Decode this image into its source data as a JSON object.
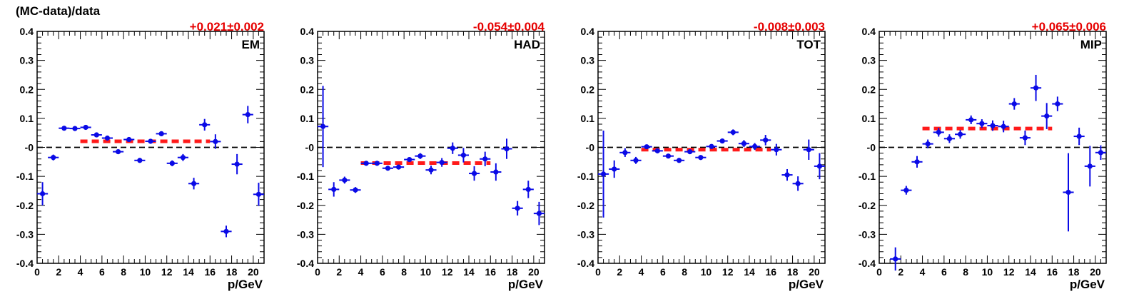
{
  "figure": {
    "ylabel": "(MC-data)/data"
  },
  "chart_data": [
    {
      "type": "scatter",
      "label": "EM",
      "fit_label": "+0.021±0.002",
      "fit": {
        "value": 0.021,
        "x_range": [
          4,
          16
        ]
      },
      "xlabel": "p/GeV",
      "xlim": [
        0,
        21
      ],
      "ylim": [
        -0.4,
        0.4
      ],
      "x_ticks": [
        0,
        2,
        4,
        6,
        8,
        10,
        12,
        14,
        16,
        18,
        20
      ],
      "y_ticks": [
        0.4,
        0.3,
        0.2,
        0.1,
        -0.0,
        -0.1,
        -0.2,
        -0.3,
        -0.4
      ],
      "y_tick_labels": [
        "0.4",
        "0.3",
        "0.2",
        "0.1",
        "-0",
        "-0.1",
        "-0.2",
        "-0.3",
        "-0.4"
      ],
      "reference_line": 0,
      "points": [
        {
          "x": 0.5,
          "y": -0.16,
          "err": 0.04
        },
        {
          "x": 1.5,
          "y": -0.035,
          "err": 0.01
        },
        {
          "x": 2.5,
          "y": 0.066,
          "err": 0.004
        },
        {
          "x": 3.5,
          "y": 0.065,
          "err": 0.004
        },
        {
          "x": 4.5,
          "y": 0.069,
          "err": 0.004
        },
        {
          "x": 5.5,
          "y": 0.043,
          "err": 0.005
        },
        {
          "x": 6.5,
          "y": 0.032,
          "err": 0.005
        },
        {
          "x": 7.5,
          "y": -0.015,
          "err": 0.006
        },
        {
          "x": 8.5,
          "y": 0.027,
          "err": 0.006
        },
        {
          "x": 9.5,
          "y": -0.045,
          "err": 0.006
        },
        {
          "x": 10.5,
          "y": 0.021,
          "err": 0.008
        },
        {
          "x": 11.5,
          "y": 0.047,
          "err": 0.008
        },
        {
          "x": 12.5,
          "y": -0.055,
          "err": 0.01
        },
        {
          "x": 13.5,
          "y": -0.035,
          "err": 0.012
        },
        {
          "x": 14.5,
          "y": -0.125,
          "err": 0.02
        },
        {
          "x": 15.5,
          "y": 0.078,
          "err": 0.02
        },
        {
          "x": 16.5,
          "y": 0.02,
          "err": 0.025
        },
        {
          "x": 17.5,
          "y": -0.29,
          "err": 0.02
        },
        {
          "x": 18.5,
          "y": -0.058,
          "err": 0.035
        },
        {
          "x": 19.5,
          "y": 0.113,
          "err": 0.03
        },
        {
          "x": 20.5,
          "y": -0.162,
          "err": 0.04
        }
      ],
      "colors": {
        "points": "#0a0ae6",
        "fit": "#ff1a1a",
        "fit_label": "#e60000"
      }
    },
    {
      "type": "scatter",
      "label": "HAD",
      "fit_label": "-0.054±0.004",
      "fit": {
        "value": -0.054,
        "x_range": [
          4,
          16
        ]
      },
      "xlabel": "p/GeV",
      "xlim": [
        0,
        21
      ],
      "ylim": [
        -0.4,
        0.4
      ],
      "x_ticks": [
        0,
        2,
        4,
        6,
        8,
        10,
        12,
        14,
        16,
        18,
        20
      ],
      "y_ticks": [
        0.4,
        0.3,
        0.2,
        0.1,
        -0.0,
        -0.1,
        -0.2,
        -0.3,
        -0.4
      ],
      "y_tick_labels": [
        "0.4",
        "0.3",
        "0.2",
        "0.1",
        "-0",
        "-0.1",
        "-0.2",
        "-0.3",
        "-0.4"
      ],
      "reference_line": 0,
      "points": [
        {
          "x": 0.5,
          "y": 0.072,
          "err": 0.14
        },
        {
          "x": 1.5,
          "y": -0.145,
          "err": 0.025
        },
        {
          "x": 2.5,
          "y": -0.113,
          "err": 0.012
        },
        {
          "x": 3.5,
          "y": -0.147,
          "err": 0.01
        },
        {
          "x": 4.5,
          "y": -0.055,
          "err": 0.006
        },
        {
          "x": 5.5,
          "y": -0.055,
          "err": 0.006
        },
        {
          "x": 6.5,
          "y": -0.072,
          "err": 0.006
        },
        {
          "x": 7.5,
          "y": -0.068,
          "err": 0.006
        },
        {
          "x": 8.5,
          "y": -0.042,
          "err": 0.008
        },
        {
          "x": 9.5,
          "y": -0.03,
          "err": 0.01
        },
        {
          "x": 10.5,
          "y": -0.078,
          "err": 0.015
        },
        {
          "x": 11.5,
          "y": -0.052,
          "err": 0.015
        },
        {
          "x": 12.5,
          "y": -0.003,
          "err": 0.02
        },
        {
          "x": 13.5,
          "y": -0.027,
          "err": 0.025
        },
        {
          "x": 14.5,
          "y": -0.09,
          "err": 0.025
        },
        {
          "x": 15.5,
          "y": -0.04,
          "err": 0.025
        },
        {
          "x": 16.5,
          "y": -0.085,
          "err": 0.03
        },
        {
          "x": 17.5,
          "y": -0.005,
          "err": 0.035
        },
        {
          "x": 18.5,
          "y": -0.21,
          "err": 0.025
        },
        {
          "x": 19.5,
          "y": -0.145,
          "err": 0.03
        },
        {
          "x": 20.5,
          "y": -0.228,
          "err": 0.04
        }
      ],
      "colors": {
        "points": "#0a0ae6",
        "fit": "#ff1a1a",
        "fit_label": "#e60000"
      }
    },
    {
      "type": "scatter",
      "label": "TOT",
      "fit_label": "-0.008±0.003",
      "fit": {
        "value": -0.008,
        "x_range": [
          4,
          16
        ]
      },
      "xlabel": "p/GeV",
      "xlim": [
        0,
        21
      ],
      "ylim": [
        -0.4,
        0.4
      ],
      "x_ticks": [
        0,
        2,
        4,
        6,
        8,
        10,
        12,
        14,
        16,
        18,
        20
      ],
      "y_ticks": [
        0.4,
        0.3,
        0.2,
        0.1,
        -0.0,
        -0.1,
        -0.2,
        -0.3,
        -0.4
      ],
      "y_tick_labels": [
        "0.4",
        "0.3",
        "0.2",
        "0.1",
        "-0",
        "-0.1",
        "-0.2",
        "-0.3",
        "-0.4"
      ],
      "reference_line": 0,
      "points": [
        {
          "x": 0.5,
          "y": -0.092,
          "err": 0.15
        },
        {
          "x": 1.5,
          "y": -0.075,
          "err": 0.03
        },
        {
          "x": 2.5,
          "y": -0.018,
          "err": 0.015
        },
        {
          "x": 3.5,
          "y": -0.045,
          "err": 0.012
        },
        {
          "x": 4.5,
          "y": 0.002,
          "err": 0.005
        },
        {
          "x": 5.5,
          "y": -0.012,
          "err": 0.005
        },
        {
          "x": 6.5,
          "y": -0.03,
          "err": 0.005
        },
        {
          "x": 7.5,
          "y": -0.045,
          "err": 0.005
        },
        {
          "x": 8.5,
          "y": -0.015,
          "err": 0.006
        },
        {
          "x": 9.5,
          "y": -0.035,
          "err": 0.008
        },
        {
          "x": 10.5,
          "y": 0.003,
          "err": 0.008
        },
        {
          "x": 11.5,
          "y": 0.022,
          "err": 0.008
        },
        {
          "x": 12.5,
          "y": 0.052,
          "err": 0.01
        },
        {
          "x": 13.5,
          "y": 0.013,
          "err": 0.012
        },
        {
          "x": 14.5,
          "y": 0.003,
          "err": 0.012
        },
        {
          "x": 15.5,
          "y": 0.025,
          "err": 0.018
        },
        {
          "x": 16.5,
          "y": -0.008,
          "err": 0.02
        },
        {
          "x": 17.5,
          "y": -0.095,
          "err": 0.02
        },
        {
          "x": 18.5,
          "y": -0.125,
          "err": 0.025
        },
        {
          "x": 19.5,
          "y": -0.008,
          "err": 0.035
        },
        {
          "x": 20.5,
          "y": -0.065,
          "err": 0.045
        }
      ],
      "colors": {
        "points": "#0a0ae6",
        "fit": "#ff1a1a",
        "fit_label": "#e60000"
      }
    },
    {
      "type": "scatter",
      "label": "MIP",
      "fit_label": "+0.065±0.006",
      "fit": {
        "value": 0.065,
        "x_range": [
          4,
          16
        ]
      },
      "xlabel": "p/GeV",
      "xlim": [
        0,
        21
      ],
      "ylim": [
        -0.4,
        0.4
      ],
      "x_ticks": [
        0,
        2,
        4,
        6,
        8,
        10,
        12,
        14,
        16,
        18,
        20
      ],
      "y_ticks": [
        0.4,
        0.3,
        0.2,
        0.1,
        -0.0,
        -0.1,
        -0.2,
        -0.3,
        -0.4
      ],
      "y_tick_labels": [
        "0.4",
        "0.3",
        "0.2",
        "0.1",
        "-0",
        "-0.1",
        "-0.2",
        "-0.3",
        "-0.4"
      ],
      "reference_line": 0,
      "points": [
        {
          "x": 1.5,
          "y": -0.385,
          "err": 0.04
        },
        {
          "x": 2.5,
          "y": -0.148,
          "err": 0.015
        },
        {
          "x": 3.5,
          "y": -0.05,
          "err": 0.02
        },
        {
          "x": 4.5,
          "y": 0.012,
          "err": 0.015
        },
        {
          "x": 5.5,
          "y": 0.052,
          "err": 0.015
        },
        {
          "x": 6.5,
          "y": 0.03,
          "err": 0.015
        },
        {
          "x": 7.5,
          "y": 0.045,
          "err": 0.015
        },
        {
          "x": 8.5,
          "y": 0.095,
          "err": 0.015
        },
        {
          "x": 9.5,
          "y": 0.082,
          "err": 0.015
        },
        {
          "x": 10.5,
          "y": 0.075,
          "err": 0.018
        },
        {
          "x": 11.5,
          "y": 0.072,
          "err": 0.02
        },
        {
          "x": 12.5,
          "y": 0.15,
          "err": 0.02
        },
        {
          "x": 13.5,
          "y": 0.033,
          "err": 0.025
        },
        {
          "x": 14.5,
          "y": 0.205,
          "err": 0.045
        },
        {
          "x": 15.5,
          "y": 0.108,
          "err": 0.045
        },
        {
          "x": 16.5,
          "y": 0.15,
          "err": 0.025
        },
        {
          "x": 17.5,
          "y": -0.155,
          "err": 0.135
        },
        {
          "x": 18.5,
          "y": 0.038,
          "err": 0.03
        },
        {
          "x": 19.5,
          "y": -0.065,
          "err": 0.07
        },
        {
          "x": 20.5,
          "y": -0.018,
          "err": 0.025
        }
      ],
      "colors": {
        "points": "#0a0ae6",
        "fit": "#ff1a1a",
        "fit_label": "#e60000"
      }
    }
  ]
}
